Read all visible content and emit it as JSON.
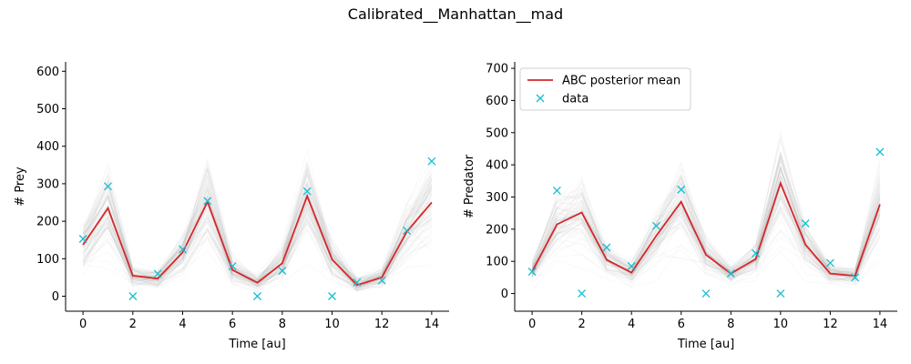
{
  "figure": {
    "title": "Calibrated__Manhattan__mad"
  },
  "colors": {
    "mean": "#d62728",
    "data": "#17becf",
    "trajectories": "#9e9e9e"
  },
  "chart_data": [
    {
      "type": "line",
      "xlabel": "Time [au]",
      "ylabel": "# Prey",
      "xlim": [
        -0.7,
        14.7
      ],
      "ylim": [
        -40,
        625
      ],
      "xticks": [
        0,
        2,
        4,
        6,
        8,
        10,
        12,
        14
      ],
      "yticks": [
        0,
        100,
        200,
        300,
        400,
        500,
        600
      ],
      "x": [
        0,
        1,
        2,
        3,
        4,
        5,
        6,
        7,
        8,
        9,
        10,
        11,
        12,
        13,
        14
      ],
      "series": [
        {
          "name": "ABC posterior mean",
          "kind": "line",
          "values": [
            137,
            235,
            55,
            47,
            117,
            252,
            70,
            36,
            88,
            267,
            98,
            30,
            50,
            172,
            250
          ]
        },
        {
          "name": "data",
          "kind": "marker",
          "marker": "x",
          "values": [
            153,
            293,
            0,
            60,
            125,
            254,
            80,
            0,
            68,
            280,
            0,
            37,
            42,
            175,
            360
          ]
        }
      ],
      "legend": null
    },
    {
      "type": "line",
      "xlabel": "Time [au]",
      "ylabel": "# Predator",
      "xlim": [
        -0.7,
        14.7
      ],
      "ylim": [
        -55,
        720
      ],
      "xticks": [
        0,
        2,
        4,
        6,
        8,
        10,
        12,
        14
      ],
      "yticks": [
        0,
        100,
        200,
        300,
        400,
        500,
        600,
        700
      ],
      "x": [
        0,
        1,
        2,
        3,
        4,
        5,
        6,
        7,
        8,
        9,
        10,
        11,
        12,
        13,
        14
      ],
      "series": [
        {
          "name": "ABC posterior mean",
          "kind": "line",
          "values": [
            68,
            215,
            252,
            105,
            65,
            180,
            285,
            120,
            62,
            107,
            343,
            152,
            62,
            55,
            277
          ]
        },
        {
          "name": "data",
          "kind": "marker",
          "marker": "x",
          "values": [
            68,
            320,
            0,
            143,
            85,
            210,
            323,
            0,
            62,
            125,
            0,
            218,
            95,
            50,
            440
          ]
        }
      ],
      "legend": "upper-left"
    }
  ]
}
